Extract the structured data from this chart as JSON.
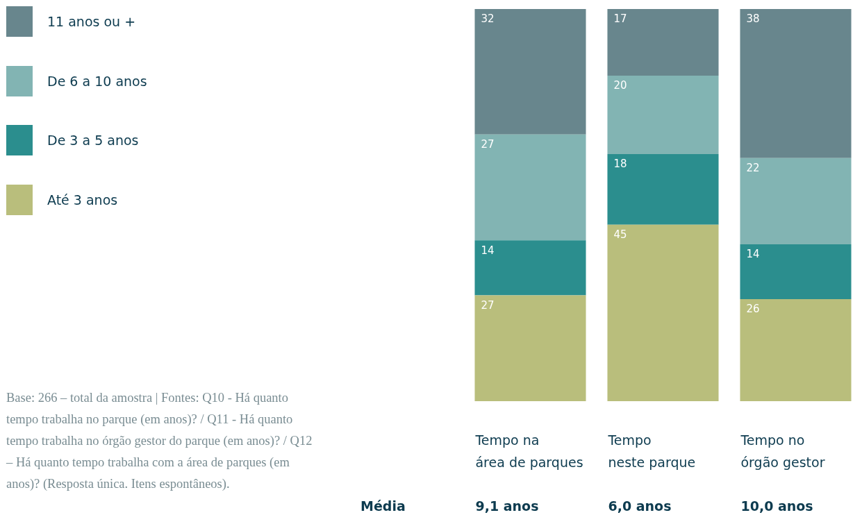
{
  "chart_data": {
    "type": "bar",
    "stacked": true,
    "data_labels": true,
    "grid": false,
    "legend": "top left",
    "categories": [
      "Tempo na\nárea de parques",
      "Tempo\nneste parque",
      "Tempo no\nórgão gestor"
    ],
    "series": [
      {
        "name": "Até 3 anos",
        "color": "#b9be7c",
        "values": [
          27,
          45,
          26
        ]
      },
      {
        "name": "De 3 a 5 anos",
        "color": "#2b8e8e",
        "values": [
          14,
          18,
          14
        ]
      },
      {
        "name": "De 6 a 10 anos",
        "color": "#82b4b3",
        "values": [
          27,
          20,
          22
        ]
      },
      {
        "name": "11 anos ou +",
        "color": "#68868d",
        "values": [
          32,
          17,
          38
        ]
      }
    ],
    "annotations": [
      "Média",
      "9,1 anos",
      "6,0 anos",
      "10,0 anos",
      "Base: 266 – total da amostra | Fontes: Q10 - Há quanto tempo trabalha no parque (em anos)? / Q11 - Há quanto tempo trabalha no órgão gestor do parque (em anos)? / Q12 – Há quanto tempo trabalha com a área de parques (em anos)? (Resposta única. Itens espontâneos)."
    ]
  }
}
